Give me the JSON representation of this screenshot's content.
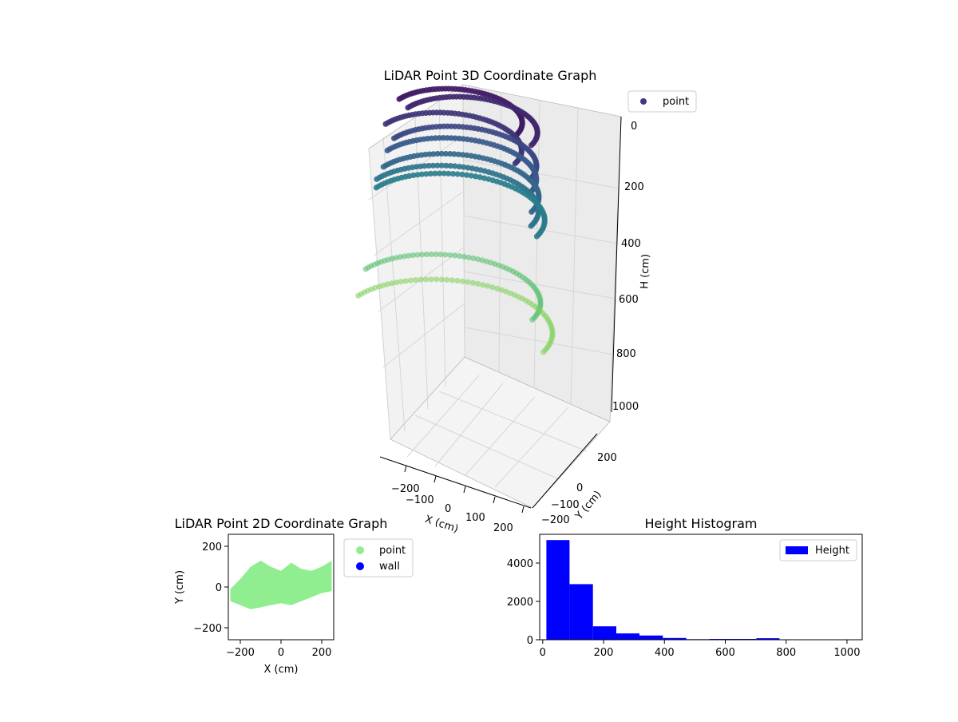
{
  "chart_data": [
    {
      "type": "scatter3d",
      "title": "LiDAR Point 3D Coordinate Graph",
      "xlabel": "X (cm)",
      "ylabel": "Y (cm)",
      "zlabel": "H (cm)",
      "xlim": [
        -250,
        250
      ],
      "ylim": [
        -250,
        250
      ],
      "zlim": [
        0,
        1000
      ],
      "z_inverted": true,
      "xticks": [
        "−200",
        "−100",
        "0",
        "100",
        "200"
      ],
      "yticks": [
        "−200",
        "−100",
        "0",
        "200"
      ],
      "zticks": [
        "0",
        "200",
        "400",
        "600",
        "800",
        "1000"
      ],
      "colormap": "viridis",
      "legend": {
        "placement": "top-right",
        "entries": [
          {
            "label": "point",
            "color": "#3e3a83"
          }
        ]
      },
      "series": [
        {
          "rings": [
            {
              "radius": 190,
              "z": 80,
              "cx": 0,
              "cy": 0
            },
            {
              "radius": 200,
              "z": 120,
              "cx": 20,
              "cy": 20
            },
            {
              "radius": 210,
              "z": 160,
              "cx": 0,
              "cy": -20
            },
            {
              "radius": 220,
              "z": 220,
              "cx": 20,
              "cy": 0
            },
            {
              "radius": 230,
              "z": 280,
              "cx": 0,
              "cy": 10
            },
            {
              "radius": 240,
              "z": 330,
              "cx": 10,
              "cy": 0
            },
            {
              "radius": 250,
              "z": 380,
              "cx": 0,
              "cy": 0
            },
            {
              "radius": 260,
              "z": 420,
              "cx": 0,
              "cy": 10
            },
            {
              "radius": 270,
              "z": 700,
              "cx": 0,
              "cy": 0
            },
            {
              "radius": 300,
              "z": 800,
              "cx": 10,
              "cy": 0
            }
          ]
        }
      ]
    },
    {
      "type": "scatter",
      "title": "LiDAR Point 2D Coordinate Graph",
      "xlabel": "X (cm)",
      "ylabel": "Y (cm)",
      "xlim": [
        -260,
        260
      ],
      "ylim": [
        -260,
        260
      ],
      "xticks": [
        "−200",
        "0",
        "200"
      ],
      "yticks": [
        "−200",
        "0",
        "200"
      ],
      "legend": {
        "placement": "outside-right",
        "entries": [
          {
            "label": "point",
            "color": "#90ee90"
          },
          {
            "label": "wall",
            "color": "#0000ff"
          }
        ]
      },
      "blob": {
        "x_range": [
          -250,
          250
        ],
        "y_upper": [
          -10,
          40,
          100,
          130,
          100,
          80,
          120,
          90,
          80,
          100,
          130
        ],
        "y_lower": [
          -70,
          -90,
          -110,
          -100,
          -90,
          -80,
          -90,
          -70,
          -50,
          -30,
          -20
        ]
      }
    },
    {
      "type": "bar",
      "title": "Height Histogram",
      "xlim": [
        -10,
        1050
      ],
      "ylim": [
        0,
        5500
      ],
      "xticks": [
        "0",
        "200",
        "400",
        "600",
        "800",
        "1000"
      ],
      "yticks": [
        "0",
        "2000",
        "4000"
      ],
      "legend": {
        "placement": "top-right",
        "entries": [
          {
            "label": "Height",
            "color": "#0000ff"
          }
        ]
      },
      "bins": [
        {
          "x0": 12,
          "x1": 88,
          "count": 5200
        },
        {
          "x0": 88,
          "x1": 165,
          "count": 2900
        },
        {
          "x0": 165,
          "x1": 242,
          "count": 700
        },
        {
          "x0": 242,
          "x1": 318,
          "count": 330
        },
        {
          "x0": 318,
          "x1": 395,
          "count": 220
        },
        {
          "x0": 395,
          "x1": 472,
          "count": 90
        },
        {
          "x0": 472,
          "x1": 548,
          "count": 30
        },
        {
          "x0": 548,
          "x1": 625,
          "count": 40
        },
        {
          "x0": 625,
          "x1": 702,
          "count": 40
        },
        {
          "x0": 702,
          "x1": 778,
          "count": 80
        },
        {
          "x0": 778,
          "x1": 855,
          "count": 10
        }
      ]
    }
  ]
}
